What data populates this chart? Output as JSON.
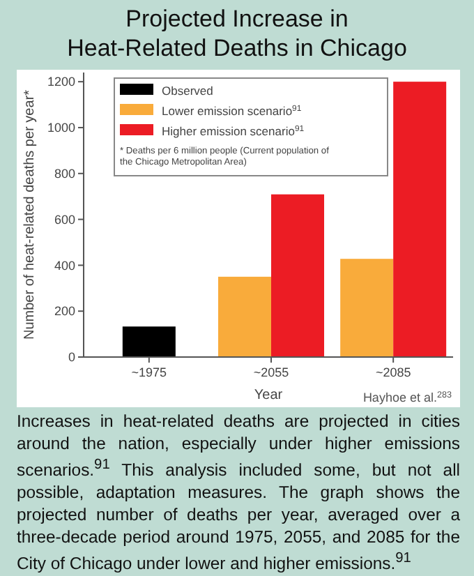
{
  "chart_data": {
    "type": "bar",
    "title": "Projected Increase in\nHeat-Related Deaths in Chicago",
    "xlabel": "Year",
    "ylabel": "Number of heat-related deaths per year*",
    "categories": [
      "~1975",
      "~2055",
      "~2085"
    ],
    "series": [
      {
        "name": "Observed",
        "color": "#000000",
        "values": [
          133,
          null,
          null
        ]
      },
      {
        "name": "Lower emission scenario$^{91}$",
        "color": "#f9ab3b",
        "values": [
          null,
          350,
          428
        ]
      },
      {
        "name": "Higher emission scenario$^{91}$",
        "color": "#ec1c24",
        "values": [
          null,
          709,
          1200
        ]
      }
    ],
    "ylim": [
      0,
      1240
    ],
    "yticks": [
      0,
      200,
      400,
      600,
      800,
      1000,
      1200
    ],
    "grid": false,
    "legend": "top left",
    "annotations": [
      "* Deaths per 6 million people (Current population of the Chicago Metropolitan Area)",
      "Hayhoe et al.$^{283}$",
      "Increases in heat-related deaths are projected in cities around the nation, especially under higher emissions scenarios.$^{91}$ This analysis included some, but not all possible, adaptation measures. The graph shows the projected number of deaths per year, averaged over a three-decade period around 1975, 2055, and 2085 for the City of Chicago under lower and higher emissions.$^{91}$"
    ]
  }
}
